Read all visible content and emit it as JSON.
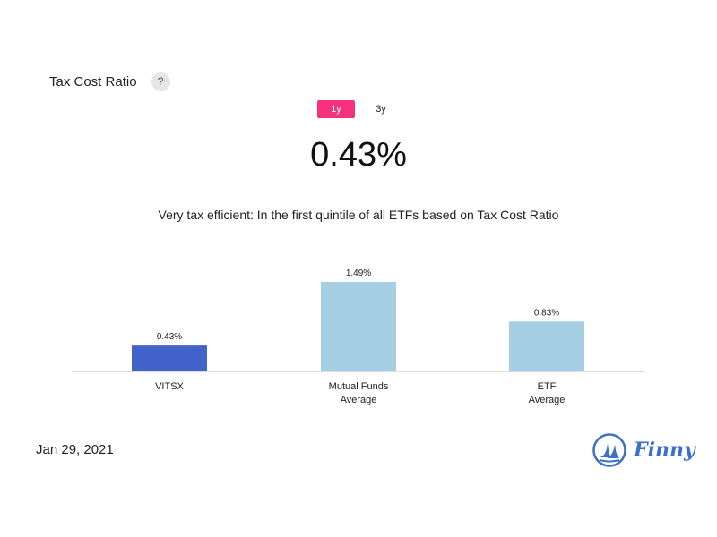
{
  "header": {
    "title": "Tax Cost Ratio",
    "help_label": "?"
  },
  "period_toggle": {
    "options": [
      "1y",
      "3y"
    ],
    "selected": "1y"
  },
  "summary": {
    "value": "0.43%",
    "description": "Very tax efficient: In the first quintile of all ETFs based on Tax Cost Ratio"
  },
  "chart_data": {
    "type": "bar",
    "categories": [
      [
        "VITSX"
      ],
      [
        "Mutual Funds",
        "Average"
      ],
      [
        "ETF",
        "Average"
      ]
    ],
    "values": [
      0.43,
      1.49,
      0.83
    ],
    "data_labels": [
      "0.43%",
      "1.49%",
      "0.83%"
    ],
    "colors": [
      "#4263c9",
      "#a6cfe6",
      "#a6cfe6"
    ],
    "ylim": [
      0,
      1.49
    ],
    "title": "",
    "xlabel": "",
    "ylabel": "",
    "grid": false,
    "legend": "none"
  },
  "footer": {
    "date": "Jan 29, 2021",
    "brand": "Finny",
    "logo_color": "#3d6fc8"
  }
}
